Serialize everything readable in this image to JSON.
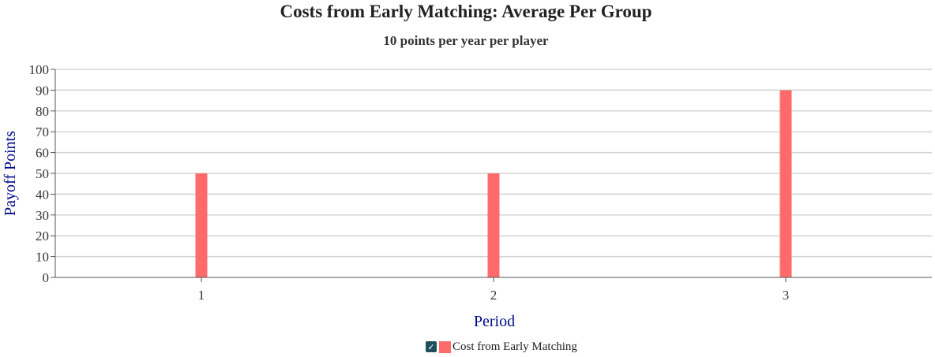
{
  "chart_data": {
    "type": "bar",
    "title": "Costs from Early Matching: Average Per Group",
    "subtitle": "10 points per year per player",
    "xlabel": "Period",
    "ylabel": "Payoff Points",
    "categories": [
      "1",
      "2",
      "3"
    ],
    "series": [
      {
        "name": "Cost from Early Matching",
        "values": [
          50,
          50,
          90
        ],
        "color": "#ff6b6b"
      }
    ],
    "ylim": [
      0,
      100
    ],
    "yticks": [
      "0",
      "10",
      "20",
      "30",
      "40",
      "50",
      "60",
      "70",
      "80",
      "90",
      "100"
    ],
    "grid": true,
    "legend_position": "bottom-center"
  },
  "legend": {
    "checkbox_icon": "checkmark-icon",
    "checkbox_glyph": "✓",
    "label": "Cost from Early Matching",
    "swatch_color": "#ff6b6b"
  }
}
